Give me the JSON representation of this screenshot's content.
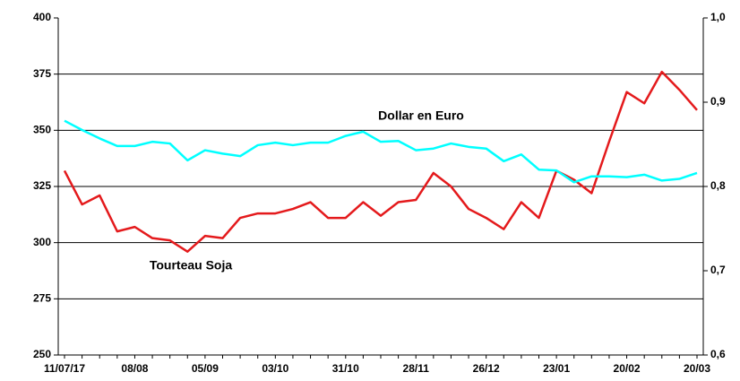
{
  "chart_data": {
    "type": "line",
    "categories": [
      "11/07/17",
      null,
      null,
      null,
      "08/08",
      null,
      null,
      null,
      "05/09",
      null,
      null,
      null,
      "03/10",
      null,
      null,
      null,
      "31/10",
      null,
      null,
      null,
      "28/11",
      null,
      null,
      null,
      "26/12",
      null,
      null,
      null,
      "23/01",
      null,
      null,
      null,
      "20/02",
      null,
      null,
      null,
      "20/03"
    ],
    "ylim": [
      250,
      400
    ],
    "yticks": [
      250,
      275,
      300,
      325,
      350,
      375,
      400
    ],
    "y2lim": [
      0.6,
      1.0
    ],
    "y2ticks": [
      {
        "value": 0.6,
        "label": "0,6"
      },
      {
        "value": 0.7,
        "label": "0,7"
      },
      {
        "value": 0.8,
        "label": "0,8"
      },
      {
        "value": 0.9,
        "label": "0,9"
      },
      {
        "value": 1.0,
        "label": "1,0"
      }
    ],
    "grid": true,
    "series": [
      {
        "name": "Tourteau Soja",
        "color": "#e41a1c",
        "values": [
          332,
          317,
          321,
          305,
          307,
          302,
          301,
          296,
          303,
          302,
          311,
          313,
          313,
          315,
          318,
          311,
          311,
          318,
          312,
          318,
          319,
          331,
          325,
          315,
          311,
          306,
          318,
          311,
          332,
          328,
          322,
          345,
          367,
          362,
          376,
          368,
          359
        ]
      },
      {
        "name": "Dollar en Euro",
        "color": "#00ffff",
        "axis": "y2",
        "values": [
          0.878,
          0.867,
          0.857,
          0.848,
          0.848,
          0.853,
          0.851,
          0.831,
          0.843,
          0.839,
          0.836,
          0.849,
          0.852,
          0.849,
          0.852,
          0.852,
          0.86,
          0.865,
          0.853,
          0.854,
          0.843,
          0.845,
          0.851,
          0.847,
          0.845,
          0.83,
          0.838,
          0.82,
          0.819,
          0.805,
          0.812,
          0.812,
          0.811,
          0.814,
          0.807,
          0.809,
          0.816
        ]
      }
    ]
  }
}
